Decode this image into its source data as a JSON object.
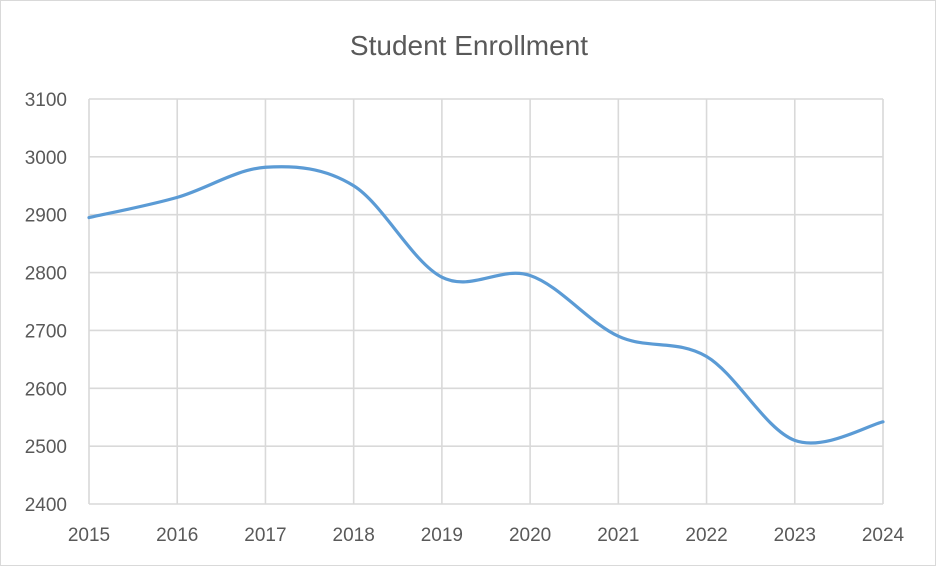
{
  "chart_data": {
    "type": "line",
    "title": "Student Enrollment",
    "xlabel": "",
    "ylabel": "",
    "x": [
      "2015",
      "2016",
      "2017",
      "2018",
      "2019",
      "2020",
      "2021",
      "2022",
      "2023",
      "2024"
    ],
    "series": [
      {
        "values": [
          2895,
          2930,
          2982,
          2950,
          2792,
          2795,
          2690,
          2655,
          2510,
          2542
        ],
        "color": "#5b9bd5"
      }
    ],
    "ylim": [
      2400,
      3100
    ],
    "yticks": [
      2400,
      2500,
      2600,
      2700,
      2800,
      2900,
      3000,
      3100
    ],
    "grid": true,
    "smooth": true,
    "legend": "none"
  }
}
